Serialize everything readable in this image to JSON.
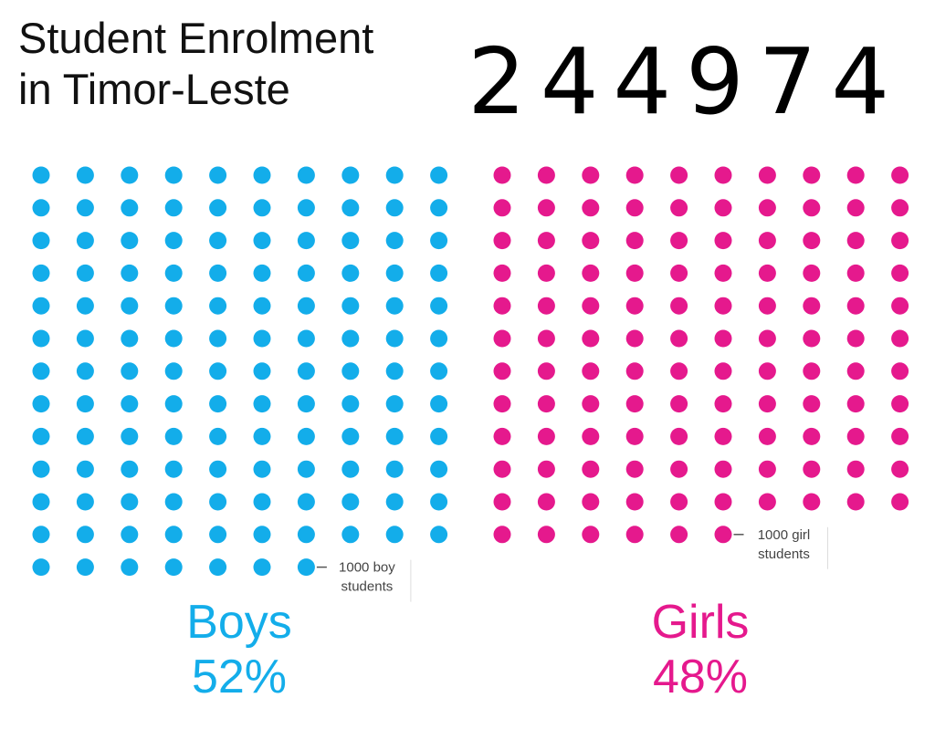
{
  "title_line1": "Student Enrolment",
  "title_line2": "in Timor-Leste",
  "total": "244974",
  "chart_data": {
    "type": "unit-dot",
    "unit": 1000,
    "series": [
      {
        "name": "Boys",
        "percent": "52%",
        "dots": 127,
        "color": "#13ADEA",
        "annotation_line1": "1000 boy",
        "annotation_line2": "students"
      },
      {
        "name": "Girls",
        "percent": "48%",
        "dots": 116,
        "color": "#E5198D",
        "annotation_line1": "1000 girl",
        "annotation_line2": "students"
      }
    ]
  }
}
